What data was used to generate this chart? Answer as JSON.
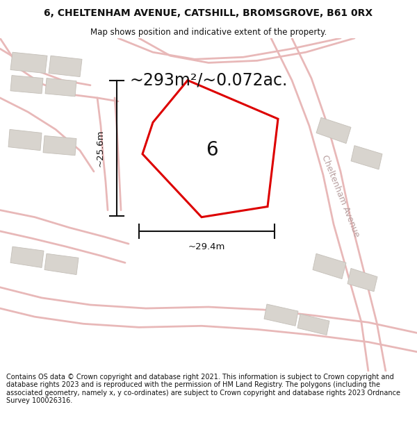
{
  "title_line1": "6, CHELTENHAM AVENUE, CATSHILL, BROMSGROVE, B61 0RX",
  "title_line2": "Map shows position and indicative extent of the property.",
  "area_text": "~293m²/~0.072ac.",
  "label_6": "6",
  "dim_height": "~25.6m",
  "dim_width": "~29.4m",
  "street_label": "Cheltenham Avenue",
  "footer_text": "Contains OS data © Crown copyright and database right 2021. This information is subject to Crown copyright and database rights 2023 and is reproduced with the permission of HM Land Registry. The polygons (including the associated geometry, namely x, y co-ordinates) are subject to Crown copyright and database rights 2023 Ordnance Survey 100026316.",
  "map_bg": "#ede9e4",
  "plot_color": "#dd0000",
  "dim_line_color": "#111111",
  "text_color": "#111111",
  "road_color": "#e8b8b8",
  "building_color": "#d8d4ce",
  "building_edge": "#c4bfb8",
  "street_text_color": "#b8a0a0"
}
